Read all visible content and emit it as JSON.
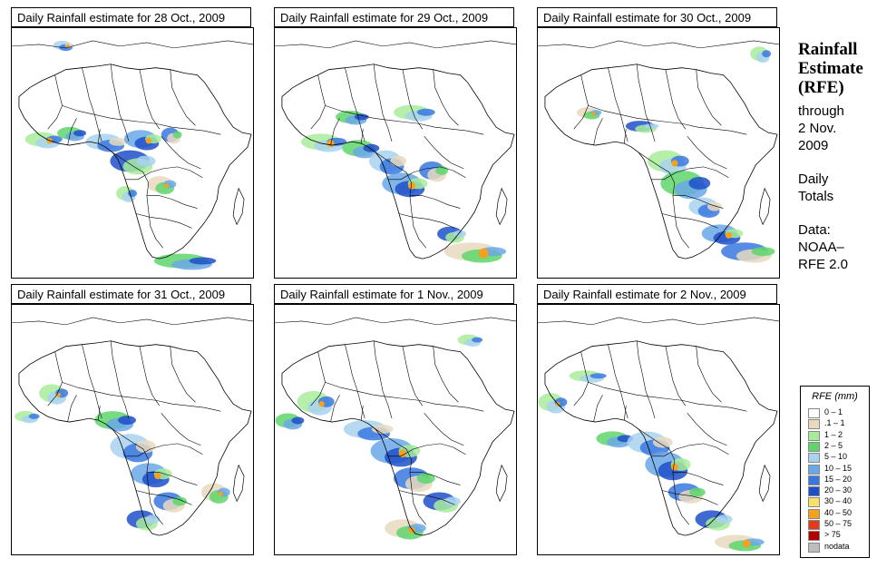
{
  "panels": [
    {
      "title": "Daily Rainfall estimate for  28 Oct., 2009"
    },
    {
      "title": "Daily Rainfall estimate for  29 Oct., 2009"
    },
    {
      "title": "Daily Rainfall estimate for  30 Oct., 2009"
    },
    {
      "title": "Daily Rainfall estimate for  31 Oct., 2009"
    },
    {
      "title": "Daily Rainfall estimate for  1 Nov., 2009"
    },
    {
      "title": "Daily Rainfall estimate for  2 Nov., 2009"
    }
  ],
  "side": {
    "title_line1": "Rainfall",
    "title_line2": "Estimate",
    "title_line3": "(RFE)",
    "through": "through",
    "date_line1": "2 Nov.",
    "date_line2": "2009",
    "daily_line1": "Daily",
    "daily_line2": "Totals",
    "data_line1": "Data:",
    "data_line2": "NOAA–",
    "data_line3": "RFE 2.0"
  },
  "legend": {
    "title": "RFE (mm)",
    "items": [
      {
        "label": "0 – 1",
        "color": "#ffffff"
      },
      {
        "label": ".1 – 1",
        "color": "#e8d9bf"
      },
      {
        "label": "1 – 2",
        "color": "#a8ec9a"
      },
      {
        "label": "2 – 5",
        "color": "#5fd66b"
      },
      {
        "label": "5 – 10",
        "color": "#a9d2f0"
      },
      {
        "label": "10 – 15",
        "color": "#6aa8e8"
      },
      {
        "label": "15 – 20",
        "color": "#3a78e0"
      },
      {
        "label": "20 – 30",
        "color": "#1f4fc9"
      },
      {
        "label": "30 – 40",
        "color": "#f6e26a"
      },
      {
        "label": "40 – 50",
        "color": "#f4a21e"
      },
      {
        "label": "50 – 75",
        "color": "#e23a1a"
      },
      {
        "label": "> 75",
        "color": "#b00000"
      },
      {
        "label": "nodata",
        "color": "#bdbdbd"
      }
    ]
  }
}
